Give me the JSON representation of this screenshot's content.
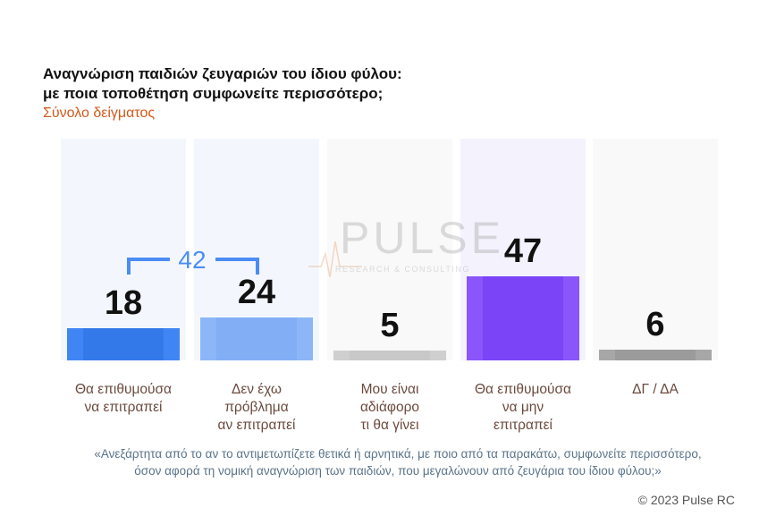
{
  "title_line1": "Αναγνώριση παιδιών ζευγαριών του  ίδιου φύλου:",
  "title_line2": "με ποια τοποθέτηση συμφωνείτε περισσότερο;",
  "subtitle": "Σύνολο δείγματος",
  "watermark": {
    "brand": "PULSE",
    "tagline": "RESEARCH & CONSULTING"
  },
  "combined": {
    "label": "42",
    "color": "#4b8cf5"
  },
  "footnote_line1": "«Ανεξάρτητα από το αν το αντιμετωπίζετε θετικά ή αρνητικά, με ποιο από τα παρακάτω, συμφωνείτε περισσότερο,",
  "footnote_line2": "όσον αφορά τη νομική αναγνώριση των παιδιών, που μεγαλώνουν από ζευγάρια του ίδιου φύλου;»",
  "copyright": "© 2023 Pulse RC",
  "chart_data": {
    "type": "bar",
    "title": "Αναγνώριση παιδιών ζευγαριών του  ίδιου φύλου: με ποια τοποθέτηση συμφωνείτε περισσότερο;",
    "subtitle": "Σύνολο δείγματος",
    "categories": [
      [
        "Θα επιθυμούσα",
        "να επιτραπεί"
      ],
      [
        "Δεν έχω",
        "πρόβλημα",
        "αν επιτραπεί"
      ],
      [
        "Μου είναι",
        "αδιάφορο",
        "τι θα γίνει"
      ],
      [
        "Θα επιθυμούσα",
        "να μην",
        "επιτραπεί"
      ],
      [
        "ΔΓ / ΔΑ"
      ]
    ],
    "values": [
      18,
      24,
      5,
      47,
      6
    ],
    "value_labels": [
      "18",
      "24",
      "5",
      "47",
      "6"
    ],
    "colors": [
      "#3f86f4",
      "#8cb6f8",
      "#cfcfcf",
      "#8a55fa",
      "#a7a7a7"
    ],
    "inner_colors": [
      "#3479ea",
      "#82aef6",
      "#c8c8c8",
      "#7b44f7",
      "#9b9b9b"
    ],
    "background_colors": [
      "#f3f7fd",
      "#f3f7fd",
      "#f9f9f9",
      "#f4f2fc",
      "#f9f9f9"
    ],
    "ylim": [
      0,
      100
    ],
    "grid": false,
    "legend": "none"
  }
}
